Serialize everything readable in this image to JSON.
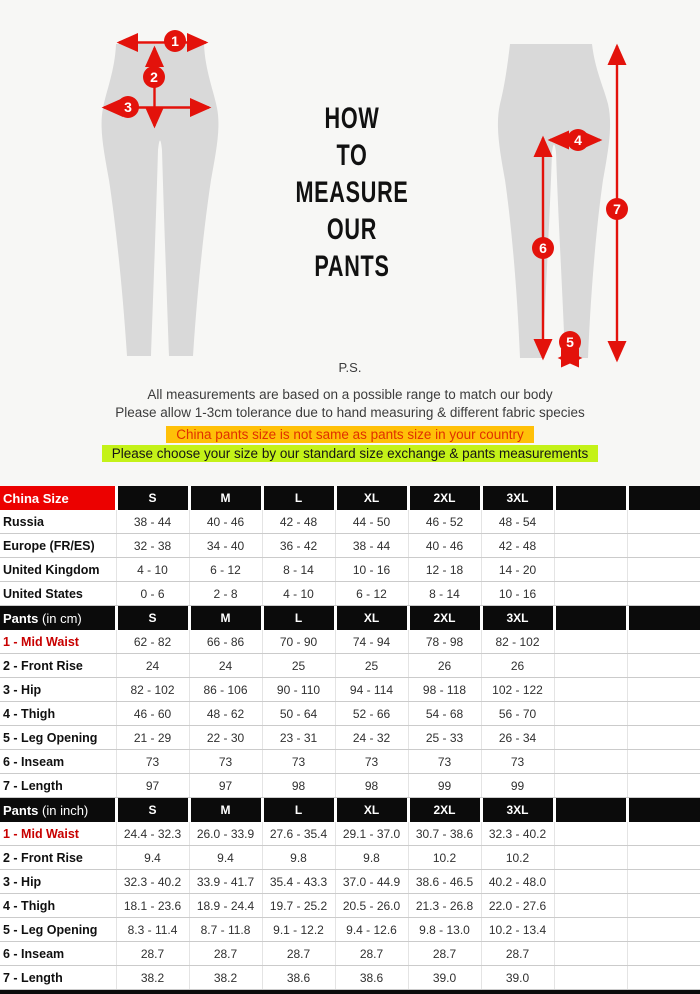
{
  "colors": {
    "section_bg": "#F7F7F5",
    "silhouette_gray": "#D9D9D9",
    "accent_red": "#E3120B",
    "header_black": "#0B0B0B",
    "china_size_header_red": "#EC0100",
    "row_label_red": "#C80000",
    "highlight_orange_bg": "#FFC008",
    "highlight_orange_text": "#E03000",
    "highlight_green_bg": "#C4F218",
    "highlight_green_text": "#151515"
  },
  "measure": {
    "title_lines": [
      "HOW",
      "TO",
      "MEASURE",
      "OUR",
      "PANTS"
    ],
    "markers": [
      {
        "label": "1",
        "meaning": "Mid Waist"
      },
      {
        "label": "2",
        "meaning": "Front Rise"
      },
      {
        "label": "3",
        "meaning": "Hip"
      },
      {
        "label": "4",
        "meaning": "Thigh"
      },
      {
        "label": "5",
        "meaning": "Leg Opening"
      },
      {
        "label": "6",
        "meaning": "Inseam"
      },
      {
        "label": "7",
        "meaning": "Length"
      }
    ],
    "ps_label": "P.S.",
    "note_line1": "All measurements are based on a possible range to match our body",
    "note_line2": "Please allow 1-3cm tolerance due to hand measuring & different fabric species",
    "warning_orange": "China pants size is not same as pants size in your country",
    "warning_green": "Please choose your size by our standard size exchange & pants measurements"
  },
  "tables": [
    {
      "id": "international-size",
      "header_label": "China Size",
      "header_suffix": "",
      "header_label_bg": "red",
      "columns": [
        "S",
        "M",
        "L",
        "XL",
        "2XL",
        "3XL",
        "",
        ""
      ],
      "rows": [
        {
          "label": "Russia",
          "red": false,
          "values": [
            "38 - 44",
            "40 - 46",
            "42 - 48",
            "44 - 50",
            "46 - 52",
            "48 - 54"
          ]
        },
        {
          "label": "Europe (FR/ES)",
          "red": false,
          "values": [
            "32 - 38",
            "34 - 40",
            "36 - 42",
            "38 - 44",
            "40 - 46",
            "42 - 48"
          ]
        },
        {
          "label": "United Kingdom",
          "red": false,
          "values": [
            "4 - 10",
            "6 - 12",
            "8 - 14",
            "10 - 16",
            "12 - 18",
            "14 - 20"
          ]
        },
        {
          "label": "United States",
          "red": false,
          "values": [
            "0 - 6",
            "2 - 8",
            "4 - 10",
            "6 - 12",
            "8 - 14",
            "10 - 16"
          ]
        }
      ]
    },
    {
      "id": "pants-cm",
      "header_label": "Pants",
      "header_suffix": " (in cm)",
      "header_label_bg": "black",
      "columns": [
        "S",
        "M",
        "L",
        "XL",
        "2XL",
        "3XL",
        "",
        ""
      ],
      "rows": [
        {
          "label": "1 - Mid Waist",
          "red": true,
          "values": [
            "62 - 82",
            "66 - 86",
            "70 - 90",
            "74 - 94",
            "78 - 98",
            "82 - 102"
          ]
        },
        {
          "label": "2 - Front Rise",
          "red": false,
          "values": [
            "24",
            "24",
            "25",
            "25",
            "26",
            "26"
          ]
        },
        {
          "label": "3 - Hip",
          "red": false,
          "values": [
            "82 - 102",
            "86 - 106",
            "90 - 110",
            "94 - 114",
            "98 - 118",
            "102 - 122"
          ]
        },
        {
          "label": "4 - Thigh",
          "red": false,
          "values": [
            "46 - 60",
            "48 - 62",
            "50 - 64",
            "52 - 66",
            "54 - 68",
            "56 - 70"
          ]
        },
        {
          "label": "5 - Leg Opening",
          "red": false,
          "values": [
            "21 - 29",
            "22 - 30",
            "23 - 31",
            "24 - 32",
            "25 - 33",
            "26 - 34"
          ]
        },
        {
          "label": "6 - Inseam",
          "red": false,
          "values": [
            "73",
            "73",
            "73",
            "73",
            "73",
            "73"
          ]
        },
        {
          "label": "7 - Length",
          "red": false,
          "values": [
            "97",
            "97",
            "98",
            "98",
            "99",
            "99"
          ]
        }
      ]
    },
    {
      "id": "pants-inch",
      "header_label": "Pants",
      "header_suffix": " (in inch)",
      "header_label_bg": "black",
      "columns": [
        "S",
        "M",
        "L",
        "XL",
        "2XL",
        "3XL",
        "",
        ""
      ],
      "rows": [
        {
          "label": "1 - Mid Waist",
          "red": true,
          "values": [
            "24.4 - 32.3",
            "26.0 - 33.9",
            "27.6 - 35.4",
            "29.1 - 37.0",
            "30.7 - 38.6",
            "32.3 - 40.2"
          ]
        },
        {
          "label": "2 - Front Rise",
          "red": false,
          "values": [
            "9.4",
            "9.4",
            "9.8",
            "9.8",
            "10.2",
            "10.2"
          ]
        },
        {
          "label": "3 - Hip",
          "red": false,
          "values": [
            "32.3 - 40.2",
            "33.9 - 41.7",
            "35.4 - 43.3",
            "37.0 - 44.9",
            "38.6 - 46.5",
            "40.2 - 48.0"
          ]
        },
        {
          "label": "4 - Thigh",
          "red": false,
          "values": [
            "18.1 - 23.6",
            "18.9 - 24.4",
            "19.7 - 25.2",
            "20.5 - 26.0",
            "21.3 - 26.8",
            "22.0 - 27.6"
          ]
        },
        {
          "label": "5 - Leg Opening",
          "red": false,
          "values": [
            "8.3 - 11.4",
            "8.7 - 11.8",
            "9.1 - 12.2",
            "9.4 - 12.6",
            "9.8 - 13.0",
            "10.2 - 13.4"
          ]
        },
        {
          "label": "6 - Inseam",
          "red": false,
          "values": [
            "28.7",
            "28.7",
            "28.7",
            "28.7",
            "28.7",
            "28.7"
          ]
        },
        {
          "label": "7 - Length",
          "red": false,
          "values": [
            "38.2",
            "38.2",
            "38.6",
            "38.6",
            "39.0",
            "39.0"
          ]
        }
      ]
    }
  ]
}
